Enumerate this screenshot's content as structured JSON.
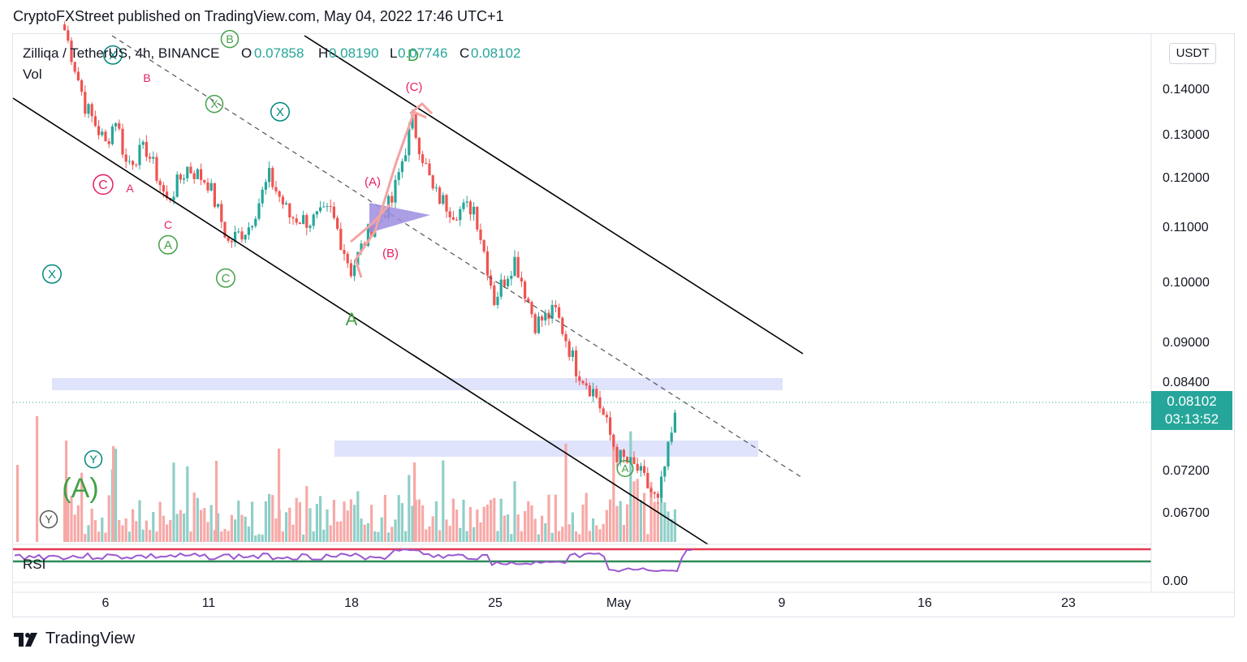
{
  "header": {
    "publisher_line": "CryptoFXStreet published on TradingView.com, May 04, 2022 17:46 UTC+1"
  },
  "legend": {
    "symbol": "Zilliqa / TetherUS, 4h, BINANCE",
    "o_label": "O",
    "o_value": "0.07858",
    "h_label": "H",
    "h_value": "0.08190",
    "l_label": "L",
    "l_value": "0.07746",
    "c_label": "C",
    "c_value": "0.08102",
    "vol_label": "Vol",
    "rsi_label": "RSI"
  },
  "currency_button": "USDT",
  "price_badge": {
    "price": "0.08102",
    "countdown": "03:13:52"
  },
  "footer": {
    "brand": "TradingView"
  },
  "colors": {
    "up": "#26a69a",
    "down": "#ef5350",
    "up_vol": "#8fcfc8",
    "down_vol": "#f7a9a7",
    "rsi_line": "#9b59d0",
    "rsi_upper": "#e53953",
    "rsi_lower": "#2e8b57",
    "zone": "#dfe3fb",
    "wave_red": "#e91e63",
    "wave_green": "#43a047",
    "wave_teal": "#00897b"
  },
  "chart_data": {
    "type": "candlestick",
    "symbol": "Zilliqa / TetherUS",
    "timeframe": "4h",
    "exchange": "BINANCE",
    "y_axis_ticks": [
      "0.14000",
      "0.13000",
      "0.12000",
      "0.11000",
      "0.10000",
      "0.09000",
      "0.08400",
      "0.07200",
      "0.06700"
    ],
    "rsi_axis_tick": "0.00",
    "x_axis_ticks": [
      "6",
      "11",
      "18",
      "25",
      "May",
      "9",
      "16",
      "23"
    ],
    "last_price": 0.08102,
    "ohlc_last": {
      "open": 0.07858,
      "high": 0.0819,
      "low": 0.07746,
      "close": 0.08102
    },
    "series": [
      {
        "name": "price",
        "waypoints": [
          [
            "Apr 4",
            0.155
          ],
          [
            "Apr 5",
            0.136
          ],
          [
            "Apr 6",
            0.127
          ],
          [
            "Apr 6.5",
            0.133
          ],
          [
            "Apr 7",
            0.123
          ],
          [
            "Apr 8",
            0.126
          ],
          [
            "Apr 9",
            0.115
          ],
          [
            "Apr 10",
            0.122
          ],
          [
            "Apr 11",
            0.119
          ],
          [
            "Apr 12",
            0.107
          ],
          [
            "Apr 13",
            0.11
          ],
          [
            "Apr 14",
            0.12
          ],
          [
            "Apr 15",
            0.112
          ],
          [
            "Apr 16",
            0.111
          ],
          [
            "Apr 17",
            0.113
          ],
          [
            "Apr 18",
            0.102
          ],
          [
            "Apr 19",
            0.11
          ],
          [
            "Apr 20",
            0.115
          ],
          [
            "Apr 21",
            0.132
          ],
          [
            "Apr 22",
            0.117
          ],
          [
            "Apr 23",
            0.113
          ],
          [
            "Apr 24",
            0.114
          ],
          [
            "Apr 25",
            0.097
          ],
          [
            "Apr 26",
            0.104
          ],
          [
            "Apr 27",
            0.093
          ],
          [
            "Apr 28",
            0.095
          ],
          [
            "Apr 29",
            0.086
          ],
          [
            "Apr 30",
            0.082
          ],
          [
            "May 1",
            0.074
          ],
          [
            "May 2",
            0.072
          ],
          [
            "May 3",
            0.068
          ],
          [
            "May 4",
            0.081
          ]
        ]
      }
    ],
    "wave_labels": [
      "(A)",
      "(B)",
      "(C)",
      "A",
      "B",
      "C",
      "D",
      "X",
      "Y"
    ]
  }
}
